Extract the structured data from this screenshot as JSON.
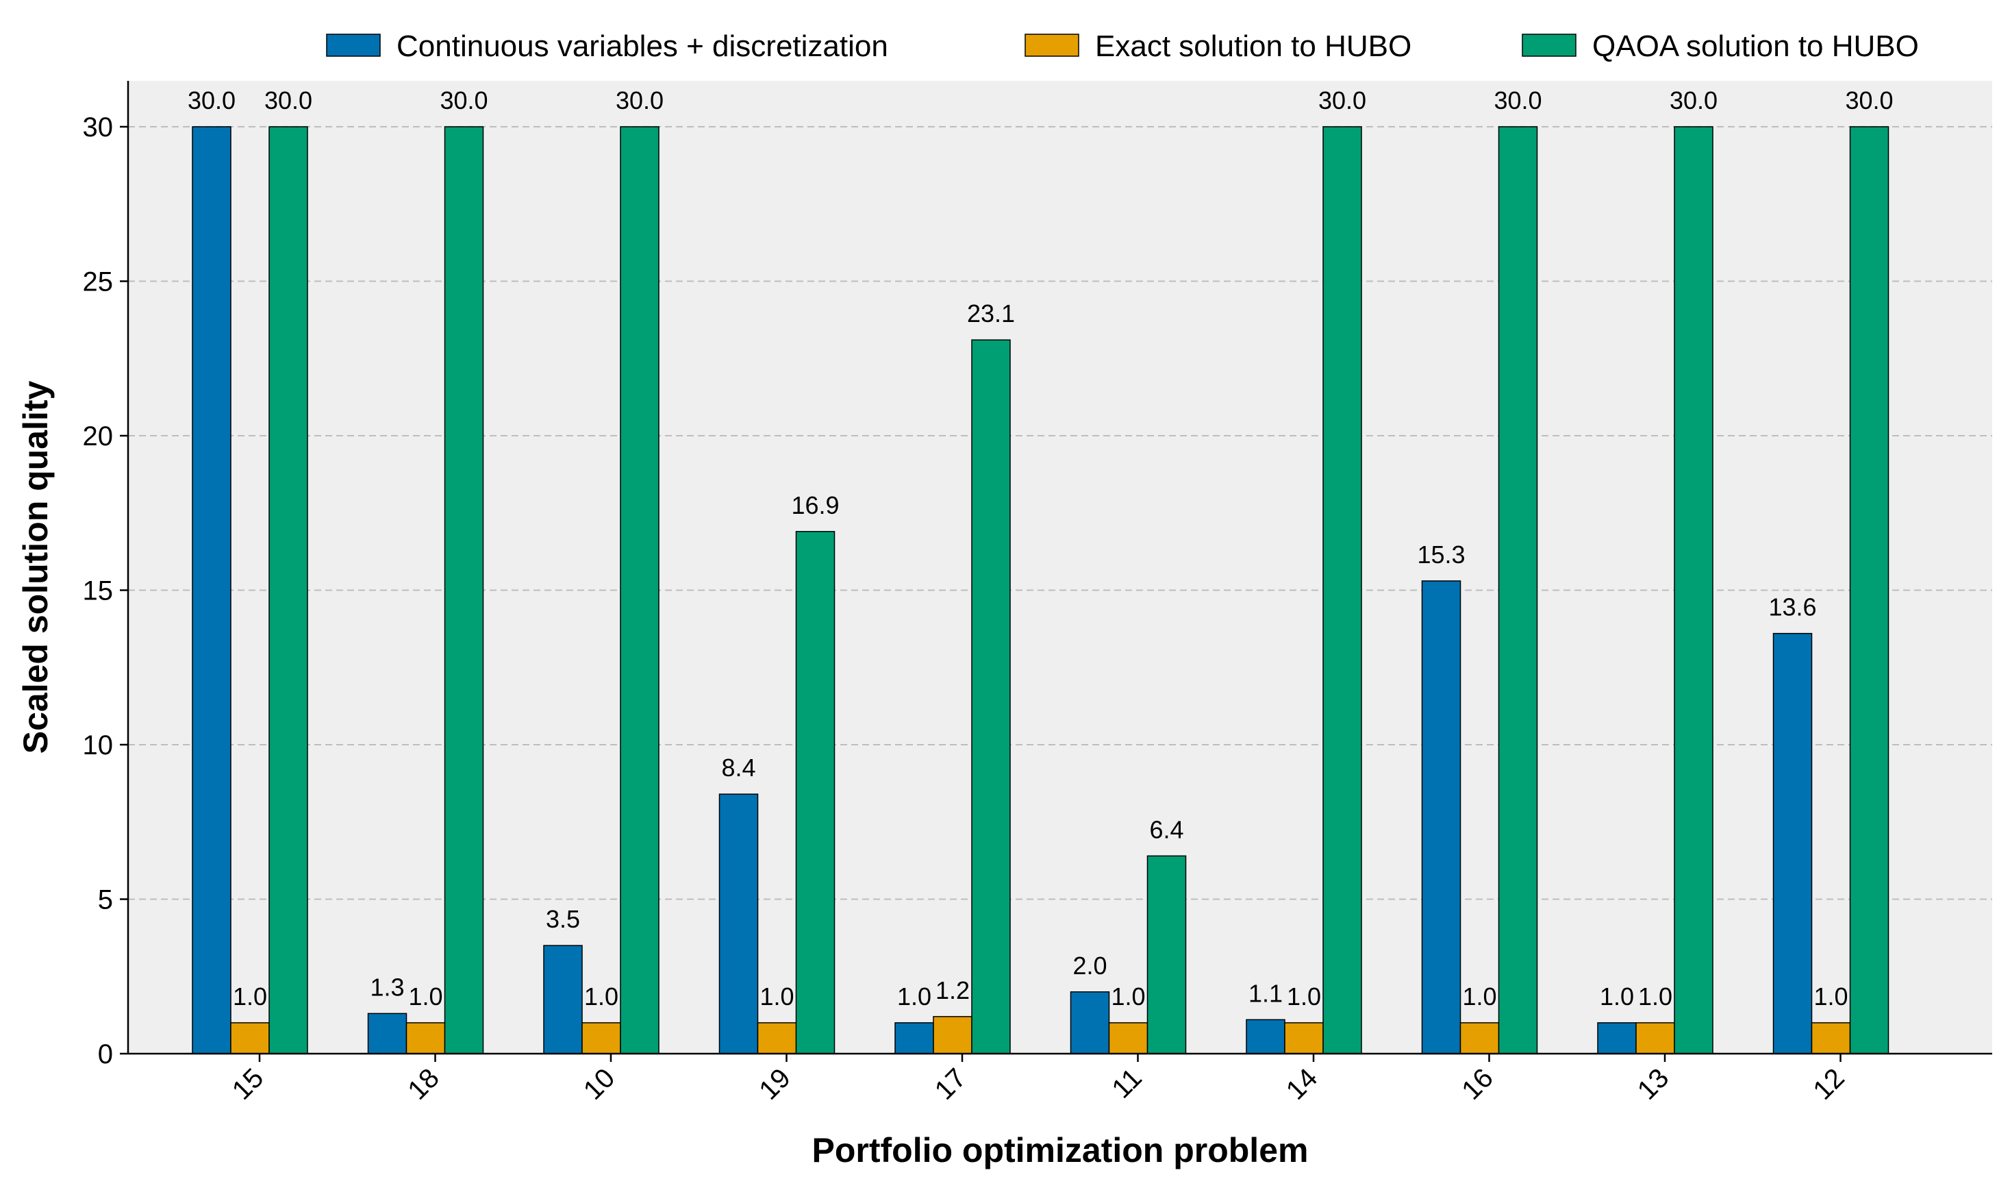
{
  "chart_data": {
    "type": "bar",
    "title": "",
    "xlabel": "Portfolio optimization problem",
    "ylabel": "Scaled solution quality",
    "categories": [
      "15",
      "18",
      "10",
      "19",
      "17",
      "11",
      "14",
      "16",
      "13",
      "12"
    ],
    "ylim": [
      0,
      31.5
    ],
    "yticks": [
      0,
      5,
      10,
      15,
      20,
      25,
      30
    ],
    "grid": "horizontal dashed",
    "legend_position": "top",
    "series": [
      {
        "name": "Continuous variables + discretization",
        "color": "#0072b2",
        "values": [
          30.0,
          1.3,
          3.5,
          8.4,
          1.0,
          2.0,
          1.1,
          15.3,
          1.0,
          13.6
        ],
        "labels": [
          "30.0",
          "1.3",
          "3.5",
          "8.4",
          "1.0",
          "2.0",
          "1.1",
          "15.3",
          "1.0",
          "13.6"
        ]
      },
      {
        "name": "Exact solution to HUBO",
        "color": "#e69f00",
        "values": [
          1.0,
          1.0,
          1.0,
          1.0,
          1.2,
          1.0,
          1.0,
          1.0,
          1.0,
          1.0
        ],
        "labels": [
          "1.0",
          "1.0",
          "1.0",
          "1.0",
          "1.2",
          "1.0",
          "1.0",
          "1.0",
          "1.0",
          "1.0"
        ]
      },
      {
        "name": "QAOA solution to HUBO",
        "color": "#009e73",
        "values": [
          30.0,
          30.0,
          30.0,
          16.9,
          23.1,
          6.4,
          30.0,
          30.0,
          30.0,
          30.0
        ],
        "labels": [
          "30.0",
          "30.0",
          "30.0",
          "16.9",
          "23.1",
          "6.4",
          "30.0",
          "30.0",
          "30.0",
          "30.0"
        ]
      }
    ]
  }
}
